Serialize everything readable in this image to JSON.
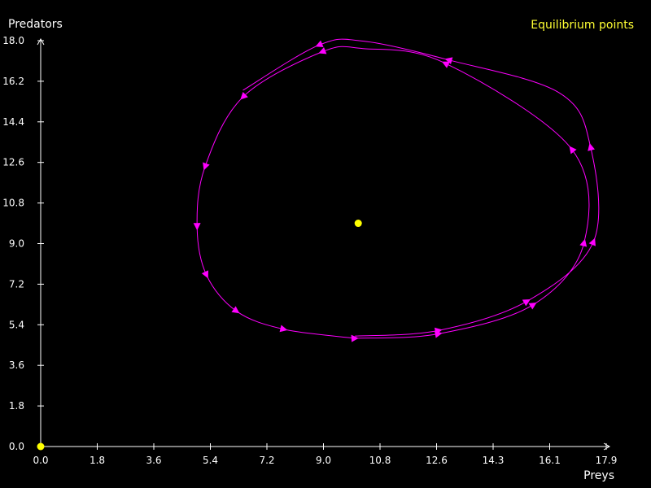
{
  "chart_data": {
    "type": "line",
    "title": "",
    "xlabel": "Preys",
    "ylabel": "Predators",
    "xlim": [
      0,
      17.9
    ],
    "ylim": [
      0,
      18.0
    ],
    "x_ticks": [
      "0.0",
      "1.8",
      "3.6",
      "5.4",
      "7.2",
      "9.0",
      "10.8",
      "12.6",
      "14.3",
      "16.1",
      "17.9"
    ],
    "y_ticks": [
      "0.0",
      "1.8",
      "3.6",
      "5.4",
      "7.2",
      "9.0",
      "10.8",
      "12.6",
      "14.4",
      "16.2",
      "18.0"
    ],
    "legend": "Equilibrium points",
    "legend_position": "top-right",
    "grid": false,
    "colors": {
      "trajectory": "#ff00ff",
      "equilibrium": "#ffff00",
      "axes": "#ffffff"
    },
    "series": [
      {
        "points": [
          [
            9.95,
            4.9
          ],
          [
            12.6,
            5.15
          ],
          [
            15.4,
            6.45
          ],
          [
            17.5,
            9.1
          ],
          [
            17.4,
            13.3
          ],
          [
            16.4,
            15.7
          ],
          [
            12.9,
            17.15
          ],
          [
            10.2,
            17.98
          ],
          [
            8.8,
            17.8
          ],
          [
            6.4,
            15.8
          ]
        ],
        "arrows": [
          [
            12.6,
            5.15
          ],
          [
            15.4,
            6.45
          ],
          [
            17.5,
            9.1
          ],
          [
            17.4,
            13.3
          ],
          [
            12.9,
            17.15
          ],
          [
            8.8,
            17.8
          ]
        ]
      },
      {
        "points": [
          [
            9.95,
            4.8
          ],
          [
            12.6,
            5.0
          ],
          [
            15.6,
            6.3
          ],
          [
            17.2,
            9.05
          ],
          [
            16.8,
            13.2
          ],
          [
            12.8,
            17.0
          ],
          [
            10.2,
            17.65
          ],
          [
            8.9,
            17.5
          ],
          [
            6.4,
            15.5
          ],
          [
            5.2,
            12.4
          ],
          [
            4.95,
            9.75
          ],
          [
            5.25,
            7.6
          ],
          [
            6.2,
            6.0
          ],
          [
            7.7,
            5.2
          ],
          [
            9.95,
            4.8
          ]
        ],
        "arrows": [
          [
            12.6,
            5.0
          ],
          [
            15.6,
            6.3
          ],
          [
            17.2,
            9.05
          ],
          [
            16.8,
            13.2
          ],
          [
            12.8,
            17.0
          ],
          [
            8.9,
            17.5
          ],
          [
            6.4,
            15.5
          ],
          [
            5.2,
            12.4
          ],
          [
            4.95,
            9.75
          ],
          [
            5.25,
            7.6
          ],
          [
            6.2,
            6.0
          ],
          [
            7.7,
            5.2
          ],
          [
            9.95,
            4.8
          ]
        ]
      }
    ],
    "equilibrium_points": [
      [
        0,
        0
      ],
      [
        10.05,
        9.9
      ]
    ]
  }
}
